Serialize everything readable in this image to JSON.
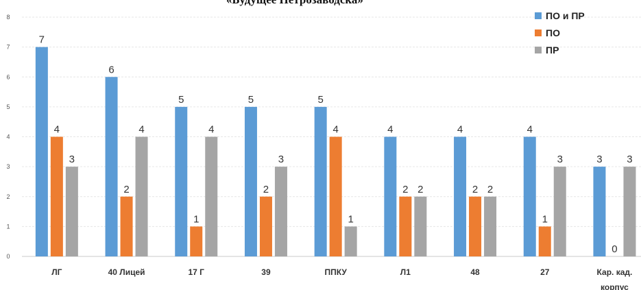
{
  "chart_data": {
    "type": "bar",
    "title": "«Будущее Петрозаводска»",
    "categories": [
      "ЛГ",
      "40 Лицей",
      "17 Г",
      "39",
      "ППКУ",
      "Л1",
      "48",
      "27",
      "Кар. кад. корпус"
    ],
    "series": [
      {
        "name": "ПО и ПР",
        "color": "#5b9bd5",
        "values": [
          7,
          6,
          5,
          5,
          5,
          4,
          4,
          4,
          3
        ]
      },
      {
        "name": "ПО",
        "color": "#ed7d31",
        "values": [
          4,
          2,
          1,
          2,
          4,
          2,
          2,
          1,
          0
        ]
      },
      {
        "name": "ПР",
        "color": "#a5a5a5",
        "values": [
          3,
          4,
          4,
          3,
          1,
          2,
          2,
          3,
          3
        ]
      }
    ],
    "ylim": [
      0,
      8
    ],
    "yticks": [
      "0",
      "1",
      "2",
      "3",
      "4",
      "5",
      "6",
      "7",
      "8"
    ],
    "grid": true,
    "legend": "top-right"
  }
}
